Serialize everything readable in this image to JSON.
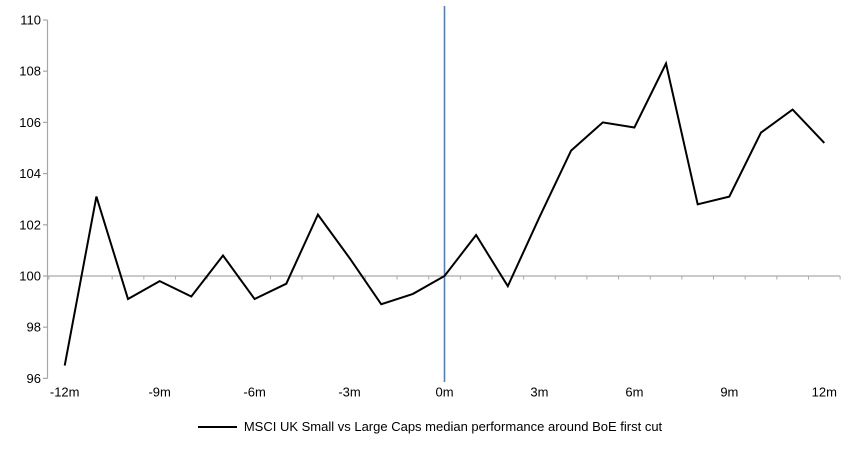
{
  "chart_data": {
    "type": "line",
    "x": [
      -12,
      -11,
      -10,
      -9,
      -8,
      -7,
      -6,
      -5,
      -4,
      -3,
      -2,
      -1,
      0,
      1,
      2,
      3,
      4,
      5,
      6,
      7,
      8,
      9,
      10,
      11,
      12
    ],
    "series": [
      {
        "name": "MSCI UK Small vs Large Caps median performance around BoE first cut",
        "values": [
          96.5,
          103.1,
          99.1,
          99.8,
          99.2,
          100.8,
          99.1,
          99.7,
          102.4,
          100.7,
          98.9,
          99.3,
          100,
          101.6,
          99.6,
          102.3,
          104.9,
          106,
          105.8,
          108.3,
          102.8,
          103.1,
          105.6,
          106.5,
          105.2
        ]
      }
    ],
    "x_tick_labels": [
      "-12m",
      "-9m",
      "-6m",
      "-3m",
      "0m",
      "3m",
      "6m",
      "9m",
      "12m"
    ],
    "x_tick_positions": [
      -12,
      -9,
      -6,
      -3,
      0,
      3,
      6,
      9,
      12
    ],
    "y_tick_labels": [
      "96",
      "98",
      "100",
      "102",
      "104",
      "106",
      "108",
      "110"
    ],
    "y_ticks": [
      96,
      98,
      100,
      102,
      104,
      106,
      108,
      110
    ],
    "ylim": [
      96,
      110
    ],
    "xlim": [
      -12.5,
      12.5
    ],
    "baseline_value": 100,
    "event_line_x": 0,
    "grid": "baseline-only",
    "legend_position": "bottom",
    "colors": {
      "series_line": "#000000",
      "axis": "#a6a6a6",
      "baseline": "#ababab",
      "event_line": "#4f81bd",
      "tick_text": "#000000",
      "background": "#ffffff"
    }
  }
}
